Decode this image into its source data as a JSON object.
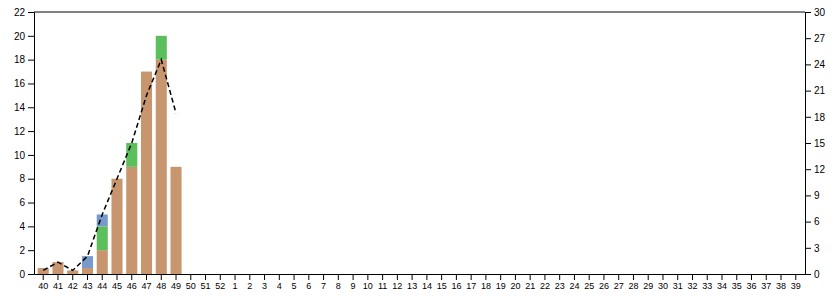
{
  "chart_data": {
    "type": "bar",
    "stacked": true,
    "grid": false,
    "categories": [
      "40",
      "41",
      "42",
      "43",
      "44",
      "45",
      "46",
      "47",
      "48",
      "49",
      "50",
      "51",
      "52",
      "1",
      "2",
      "3",
      "4",
      "5",
      "6",
      "7",
      "8",
      "9",
      "10",
      "11",
      "12",
      "13",
      "14",
      "15",
      "16",
      "17",
      "18",
      "19",
      "20",
      "21",
      "22",
      "23",
      "24",
      "25",
      "26",
      "27",
      "28",
      "29",
      "30",
      "31",
      "32",
      "33",
      "34",
      "35",
      "36",
      "37",
      "38",
      "39"
    ],
    "series": [
      {
        "color": "#C8966E",
        "values": [
          0.5,
          1.0,
          0.3,
          0.5,
          2.0,
          8.0,
          9.0,
          17.0,
          18.0,
          9.0,
          0,
          0,
          0,
          0,
          0,
          0,
          0,
          0,
          0,
          0,
          0,
          0,
          0,
          0,
          0,
          0,
          0,
          0,
          0,
          0,
          0,
          0,
          0,
          0,
          0,
          0,
          0,
          0,
          0,
          0,
          0,
          0,
          0,
          0,
          0,
          0,
          0,
          0,
          0,
          0,
          0,
          0
        ]
      },
      {
        "color": "#5BBF5B",
        "values": [
          0,
          0,
          0,
          0,
          2.0,
          0,
          2.0,
          0,
          2.0,
          0,
          0,
          0,
          0,
          0,
          0,
          0,
          0,
          0,
          0,
          0,
          0,
          0,
          0,
          0,
          0,
          0,
          0,
          0,
          0,
          0,
          0,
          0,
          0,
          0,
          0,
          0,
          0,
          0,
          0,
          0,
          0,
          0,
          0,
          0,
          0,
          0,
          0,
          0,
          0,
          0,
          0,
          0
        ]
      },
      {
        "color": "#7799CC",
        "values": [
          0,
          0,
          0,
          1.0,
          1.0,
          0,
          0,
          0,
          0,
          0,
          0,
          0,
          0,
          0,
          0,
          0,
          0,
          0,
          0,
          0,
          0,
          0,
          0,
          0,
          0,
          0,
          0,
          0,
          0,
          0,
          0,
          0,
          0,
          0,
          0,
          0,
          0,
          0,
          0,
          0,
          0,
          0,
          0,
          0,
          0,
          0,
          0,
          0,
          0,
          0,
          0,
          0
        ]
      },
      {
        "type": "line",
        "color": "#000000",
        "line_style": "dashed",
        "values": [
          0.3,
          1.0,
          0.3,
          1.5,
          5.0,
          8.0,
          11.0,
          15.0,
          18.0,
          13.5,
          null,
          null,
          null,
          null,
          null,
          null,
          null,
          null,
          null,
          null,
          null,
          null,
          null,
          null,
          null,
          null,
          null,
          null,
          null,
          null,
          null,
          null,
          null,
          null,
          null,
          null,
          null,
          null,
          null,
          null,
          null,
          null,
          null,
          null,
          null,
          null,
          null,
          null,
          null,
          null,
          null,
          null
        ]
      }
    ],
    "ylim": [
      0,
      22
    ],
    "yticks": [
      0,
      2,
      4,
      6,
      8,
      10,
      12,
      14,
      16,
      18,
      20,
      22
    ],
    "y2lim": [
      0,
      30
    ],
    "y2ticks": [
      0,
      3,
      6,
      9,
      12,
      15,
      18,
      21,
      24,
      27,
      30
    ]
  }
}
